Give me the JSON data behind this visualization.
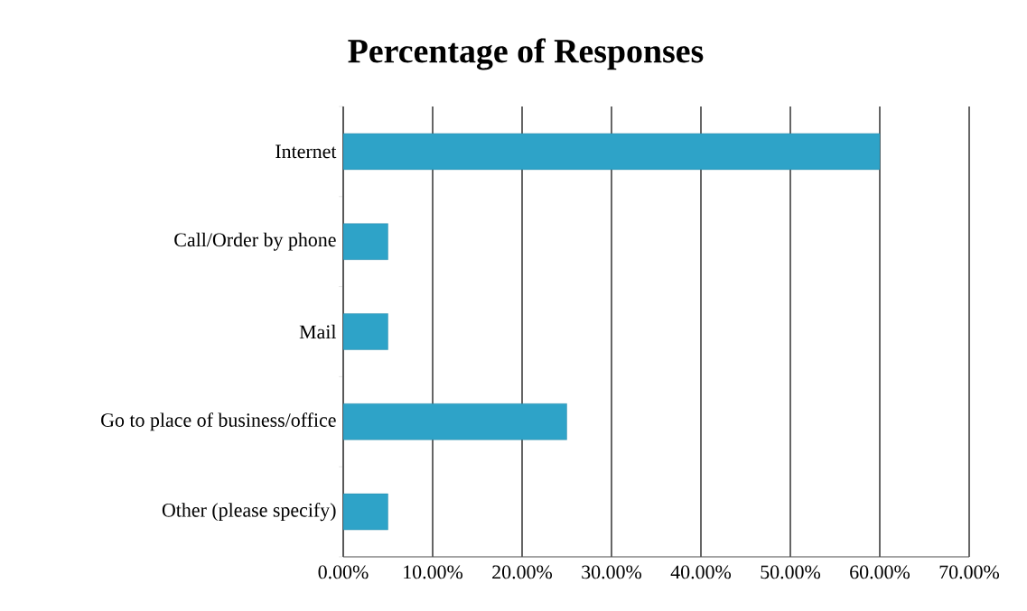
{
  "chart_data": {
    "type": "bar",
    "orientation": "horizontal",
    "title": "Percentage of Responses",
    "categories": [
      "Internet",
      "Call/Order by phone",
      "Mail",
      "Go to place of business/office",
      "Other (please specify)"
    ],
    "values": [
      60,
      5,
      5,
      25,
      5
    ],
    "color": "#2ea3c8",
    "xlim": [
      0,
      70
    ],
    "xticks": [
      {
        "value": 0,
        "label": "0.00%"
      },
      {
        "value": 10,
        "label": "10.00%"
      },
      {
        "value": 20,
        "label": "20.00%"
      },
      {
        "value": 30,
        "label": "30.00%"
      },
      {
        "value": 40,
        "label": "40.00%"
      },
      {
        "value": 50,
        "label": "50.00%"
      },
      {
        "value": 60,
        "label": "60.00%"
      },
      {
        "value": 70,
        "label": "70.00%"
      }
    ],
    "grid": "x"
  }
}
